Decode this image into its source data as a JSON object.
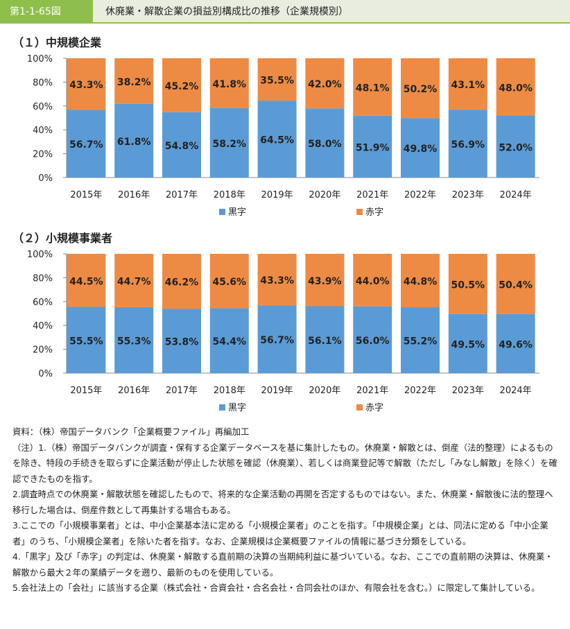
{
  "header": {
    "figure_number": "第1-1-65図",
    "title": "休廃業・解散企業の損益別構成比の推移（企業規模別）"
  },
  "chart_data": [
    {
      "type": "bar",
      "stacked": true,
      "section_title": "（１）中規模企業",
      "categories": [
        "2015年",
        "2016年",
        "2017年",
        "2018年",
        "2019年",
        "2020年",
        "2021年",
        "2022年",
        "2023年",
        "2024年"
      ],
      "series": [
        {
          "name": "黒字",
          "color": "#5b9bd5",
          "values": [
            56.7,
            61.8,
            54.8,
            58.2,
            64.5,
            58.0,
            51.9,
            49.8,
            56.9,
            52.0
          ],
          "labels": [
            "56.7%",
            "61.8%",
            "54.8%",
            "58.2%",
            "64.5%",
            "58.0%",
            "51.9%",
            "49.8%",
            "56.9%",
            "52.0%"
          ]
        },
        {
          "name": "赤字",
          "color": "#ed8b45",
          "values": [
            43.3,
            38.2,
            45.2,
            41.8,
            35.5,
            42.0,
            48.1,
            50.2,
            43.1,
            48.0
          ],
          "labels": [
            "43.3%",
            "38.2%",
            "45.2%",
            "41.8%",
            "35.5%",
            "42.0%",
            "48.1%",
            "50.2%",
            "43.1%",
            "48.0%"
          ]
        }
      ],
      "ylim": [
        0,
        100
      ],
      "y_ticks": [
        "0%",
        "20%",
        "40%",
        "60%",
        "80%",
        "100%"
      ],
      "legend_position": "bottom",
      "grid": false
    },
    {
      "type": "bar",
      "stacked": true,
      "section_title": "（２）小規模事業者",
      "categories": [
        "2015年",
        "2016年",
        "2017年",
        "2018年",
        "2019年",
        "2020年",
        "2021年",
        "2022年",
        "2023年",
        "2024年"
      ],
      "series": [
        {
          "name": "黒字",
          "color": "#5b9bd5",
          "values": [
            55.5,
            55.3,
            53.8,
            54.4,
            56.7,
            56.1,
            56.0,
            55.2,
            49.5,
            49.6
          ],
          "labels": [
            "55.5%",
            "55.3%",
            "53.8%",
            "54.4%",
            "56.7%",
            "56.1%",
            "56.0%",
            "55.2%",
            "49.5%",
            "49.6%"
          ]
        },
        {
          "name": "赤字",
          "color": "#ed8b45",
          "values": [
            44.5,
            44.7,
            46.2,
            45.6,
            43.3,
            43.9,
            44.0,
            44.8,
            50.5,
            50.4
          ],
          "labels": [
            "44.5%",
            "44.7%",
            "46.2%",
            "45.6%",
            "43.3%",
            "43.9%",
            "44.0%",
            "44.8%",
            "50.5%",
            "50.4%"
          ]
        }
      ],
      "ylim": [
        0,
        100
      ],
      "y_ticks": [
        "0%",
        "20%",
        "40%",
        "60%",
        "80%",
        "100%"
      ],
      "legend_position": "bottom",
      "grid": false
    }
  ],
  "notes": {
    "source": "資料：（株）帝国データバンク「企業概要ファイル」再編加工",
    "lines": [
      "（注）1.（株）帝国データバンクが調査・保有する企業データベースを基に集計したもの。休廃業・解散とは、倒産（法的整理）によるものを除き、特段の手続きを取らずに企業活動が停止した状態を確認（休廃業）、若しくは商業登記等で解散（ただし「みなし解散」を除く）を確認できたものを指す。",
      "2.調査時点での休廃業・解散状態を確認したもので、将来的な企業活動の再開を否定するものではない。また、休廃業・解散後に法的整理へ移行した場合は、倒産件数として再集計する場合もある。",
      "3.ここでの「小規模事業者」とは、中小企業基本法に定める「小規模企業者」のことを指す。「中規模企業」とは、同法に定める「中小企業者」のうち、「小規模企業者」を除いた者を指す。なお、企業規模は企業概要ファイルの情報に基づき分類をしている。",
      "4.「黒字」及び「赤字」の判定は、休廃業・解散する直前期の決算の当期純利益に基づいている。なお、ここでの直前期の決算は、休廃業・解散から最大２年の業績データを遡り、最新のものを使用している。",
      "5.会社法上の「会社」に該当する企業（株式会社・合資会社・合名会社・合同会社のほか、有限会社を含む。）に限定して集計している。"
    ]
  }
}
